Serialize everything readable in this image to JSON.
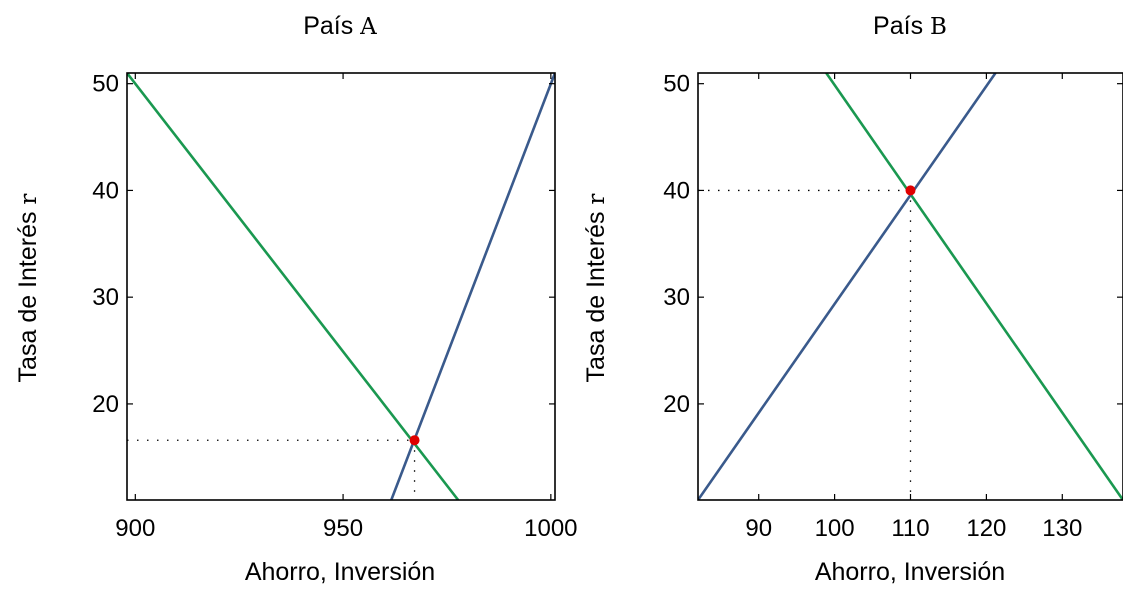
{
  "chart_data": [
    {
      "type": "line",
      "title": "País",
      "title_var": "A",
      "xlabel": "Ahorro, Inversión",
      "ylabel": "Tasa de Interés",
      "ylabel_var": "r",
      "xlim": [
        898,
        1001
      ],
      "ylim": [
        11,
        51
      ],
      "xticks": [
        900,
        950,
        1000
      ],
      "yticks": [
        20,
        30,
        40,
        50
      ],
      "series": [
        {
          "role": "downward",
          "color": "#1a9850",
          "points": [
            [
              898,
              51
            ],
            [
              977.7,
              11
            ]
          ]
        },
        {
          "role": "upward",
          "color": "#3a5a8c",
          "points": [
            [
              961.6,
              11
            ],
            [
              1001,
              51
            ]
          ]
        }
      ],
      "equilibrium": {
        "x": 967.2,
        "y": 16.6,
        "color": "#e00000"
      },
      "grid": false,
      "legend": "none"
    },
    {
      "type": "line",
      "title": "País",
      "title_var": "B",
      "xlabel": "Ahorro, Inversión",
      "ylabel": "Tasa de Interés",
      "ylabel_var": "r",
      "xlim": [
        82,
        138
      ],
      "ylim": [
        11,
        51
      ],
      "xticks": [
        90,
        100,
        110,
        120,
        130
      ],
      "yticks": [
        20,
        30,
        40,
        50
      ],
      "series": [
        {
          "role": "downward",
          "color": "#1a9850",
          "points": [
            [
              98.9,
              51
            ],
            [
              138,
              11
            ]
          ]
        },
        {
          "role": "upward",
          "color": "#3a5a8c",
          "points": [
            [
              82,
              11
            ],
            [
              121.2,
              51
            ]
          ]
        }
      ],
      "equilibrium": {
        "x": 110,
        "y": 40,
        "color": "#e00000"
      },
      "grid": false,
      "legend": "none"
    }
  ]
}
